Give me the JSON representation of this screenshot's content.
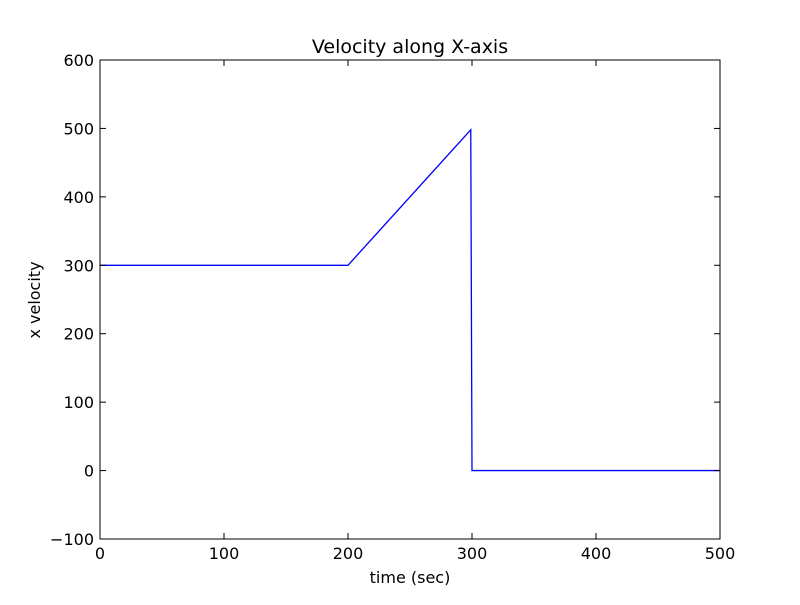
{
  "chart_data": {
    "type": "line",
    "title": "Velocity along X-axis",
    "xlabel": "time (sec)",
    "ylabel": "x velocity",
    "xlim": [
      0,
      500
    ],
    "ylim": [
      -100,
      600
    ],
    "x_ticks": [
      0,
      100,
      200,
      300,
      400,
      500
    ],
    "y_ticks": [
      -100,
      0,
      100,
      200,
      300,
      400,
      500,
      600
    ],
    "x_tick_labels": [
      "0",
      "100",
      "200",
      "300",
      "400",
      "500"
    ],
    "y_tick_labels": [
      "−100",
      "0",
      "100",
      "200",
      "300",
      "400",
      "500",
      "600"
    ],
    "grid": false,
    "legend": "none",
    "series": [
      {
        "color": "#0000ff",
        "points": [
          [
            0,
            300
          ],
          [
            200,
            300
          ],
          [
            299,
            498
          ],
          [
            300,
            0
          ],
          [
            500,
            0
          ]
        ]
      }
    ]
  }
}
